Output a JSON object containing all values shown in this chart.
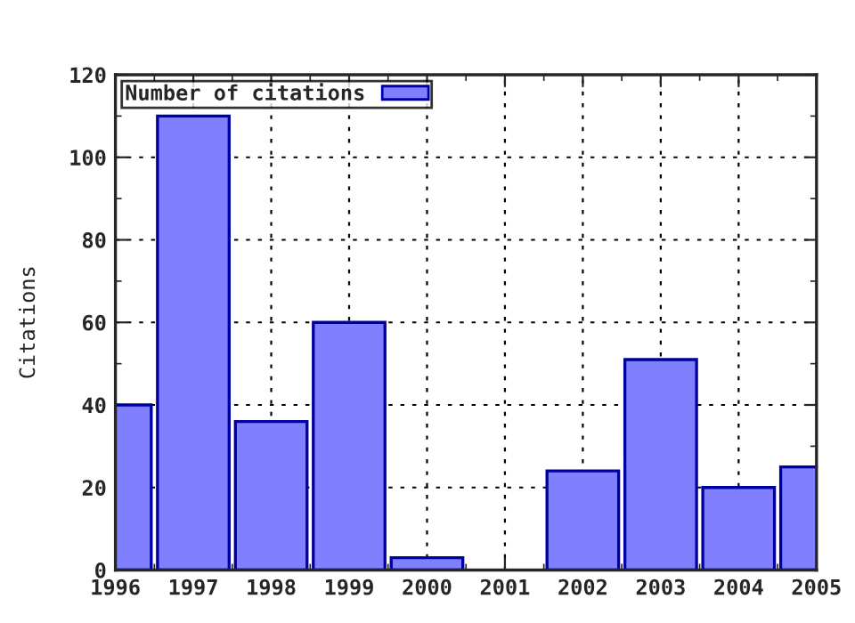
{
  "chart_data": {
    "type": "bar",
    "ylabel": "Citations",
    "x": [
      1996,
      1997,
      1998,
      1999,
      2000,
      2002,
      2003,
      2004,
      2005
    ],
    "series": [
      {
        "name": "Number of citations",
        "color": "#8080ff",
        "values": [
          40,
          110,
          36,
          60,
          3,
          24,
          51,
          20,
          25
        ]
      }
    ],
    "xlim": [
      1996,
      2005
    ],
    "xticks": [
      1996,
      1997,
      1998,
      1999,
      2000,
      2001,
      2002,
      2003,
      2004,
      2005
    ],
    "ylim": [
      0,
      120
    ],
    "yticks": [
      0,
      20,
      40,
      60,
      80,
      100,
      120
    ],
    "grid": true,
    "legend": "top left"
  }
}
